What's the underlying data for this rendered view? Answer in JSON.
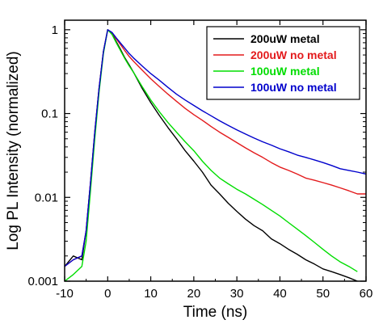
{
  "chart_data": {
    "type": "line",
    "title": "",
    "xlabel": "Time (ns)",
    "ylabel": "Log PL Intensity (normalized)",
    "xlim": [
      -10,
      60
    ],
    "ylim": [
      0.001,
      1.3
    ],
    "yscale": "log",
    "grid": false,
    "legend_position": "top-right",
    "xticks": [
      -10,
      0,
      10,
      20,
      30,
      40,
      50,
      60
    ],
    "xtick_labels": [
      "-10",
      "0",
      "10",
      "20",
      "30",
      "40",
      "50",
      "60"
    ],
    "yticks": [
      1,
      0.1,
      0.01,
      0.001
    ],
    "ytick_labels": [
      "1",
      "0.1",
      "0.01",
      "0.001"
    ],
    "series": [
      {
        "name": "200uW metal",
        "color": "#000000",
        "x": [
          -10,
          -8,
          -6,
          -5,
          -4,
          -3,
          -2,
          -1,
          0,
          1,
          2,
          3,
          4,
          5,
          6,
          8,
          10,
          12,
          14,
          16,
          18,
          20,
          22,
          24,
          26,
          28,
          30,
          32,
          34,
          36,
          38,
          40,
          42,
          44,
          46,
          48,
          50,
          52,
          54,
          56,
          58
        ],
        "y": [
          0.0015,
          0.002,
          0.0018,
          0.004,
          0.015,
          0.06,
          0.2,
          0.55,
          1.0,
          0.9,
          0.72,
          0.58,
          0.46,
          0.38,
          0.31,
          0.2,
          0.135,
          0.095,
          0.068,
          0.05,
          0.036,
          0.027,
          0.02,
          0.014,
          0.011,
          0.0085,
          0.0068,
          0.0055,
          0.0046,
          0.004,
          0.0032,
          0.0028,
          0.0024,
          0.0021,
          0.0018,
          0.0016,
          0.0014,
          0.0013,
          0.0012,
          0.0011,
          0.001
        ]
      },
      {
        "name": "200uW no metal",
        "color": "#e31a1c",
        "x": [
          -10,
          -8,
          -6,
          -5,
          -4,
          -3,
          -2,
          -1,
          0,
          1,
          2,
          3,
          4,
          5,
          6,
          8,
          10,
          12,
          14,
          16,
          18,
          20,
          22,
          24,
          26,
          28,
          30,
          32,
          34,
          36,
          38,
          40,
          42,
          44,
          46,
          48,
          50,
          52,
          54,
          56,
          58,
          60
        ],
        "y": [
          0.0015,
          0.0018,
          0.002,
          0.004,
          0.015,
          0.06,
          0.2,
          0.55,
          1.0,
          0.92,
          0.78,
          0.66,
          0.56,
          0.48,
          0.42,
          0.33,
          0.26,
          0.21,
          0.17,
          0.14,
          0.115,
          0.097,
          0.083,
          0.07,
          0.06,
          0.052,
          0.045,
          0.039,
          0.034,
          0.03,
          0.026,
          0.023,
          0.021,
          0.019,
          0.017,
          0.016,
          0.015,
          0.014,
          0.013,
          0.012,
          0.011,
          0.011
        ]
      },
      {
        "name": "100uW metal",
        "color": "#00dd00",
        "x": [
          -10,
          -8,
          -6,
          -5,
          -4,
          -3,
          -2,
          -1,
          0,
          1,
          2,
          3,
          4,
          5,
          6,
          8,
          10,
          12,
          14,
          16,
          18,
          20,
          22,
          24,
          26,
          28,
          30,
          32,
          34,
          36,
          38,
          40,
          42,
          44,
          46,
          48,
          50,
          52,
          54,
          56,
          58
        ],
        "y": [
          0.001,
          0.0012,
          0.0015,
          0.003,
          0.012,
          0.05,
          0.18,
          0.52,
          1.0,
          0.88,
          0.7,
          0.56,
          0.45,
          0.37,
          0.31,
          0.21,
          0.145,
          0.105,
          0.078,
          0.06,
          0.046,
          0.036,
          0.027,
          0.021,
          0.017,
          0.0145,
          0.0125,
          0.011,
          0.0095,
          0.0082,
          0.007,
          0.006,
          0.005,
          0.0042,
          0.0035,
          0.0029,
          0.0024,
          0.002,
          0.0017,
          0.0015,
          0.0013
        ]
      },
      {
        "name": "100uW no metal",
        "color": "#0000cc",
        "x": [
          -10,
          -8,
          -6,
          -5,
          -4,
          -3,
          -2,
          -1,
          0,
          1,
          2,
          3,
          4,
          5,
          6,
          8,
          10,
          12,
          14,
          16,
          18,
          20,
          22,
          24,
          26,
          28,
          30,
          32,
          34,
          36,
          38,
          40,
          42,
          44,
          46,
          48,
          50,
          52,
          54,
          56,
          58,
          60
        ],
        "y": [
          0.0015,
          0.0018,
          0.002,
          0.004,
          0.015,
          0.06,
          0.2,
          0.55,
          1.0,
          0.93,
          0.8,
          0.69,
          0.6,
          0.52,
          0.46,
          0.37,
          0.3,
          0.25,
          0.205,
          0.17,
          0.145,
          0.125,
          0.108,
          0.094,
          0.082,
          0.072,
          0.064,
          0.057,
          0.051,
          0.046,
          0.042,
          0.038,
          0.035,
          0.032,
          0.03,
          0.028,
          0.026,
          0.024,
          0.022,
          0.021,
          0.02,
          0.019
        ]
      }
    ]
  }
}
